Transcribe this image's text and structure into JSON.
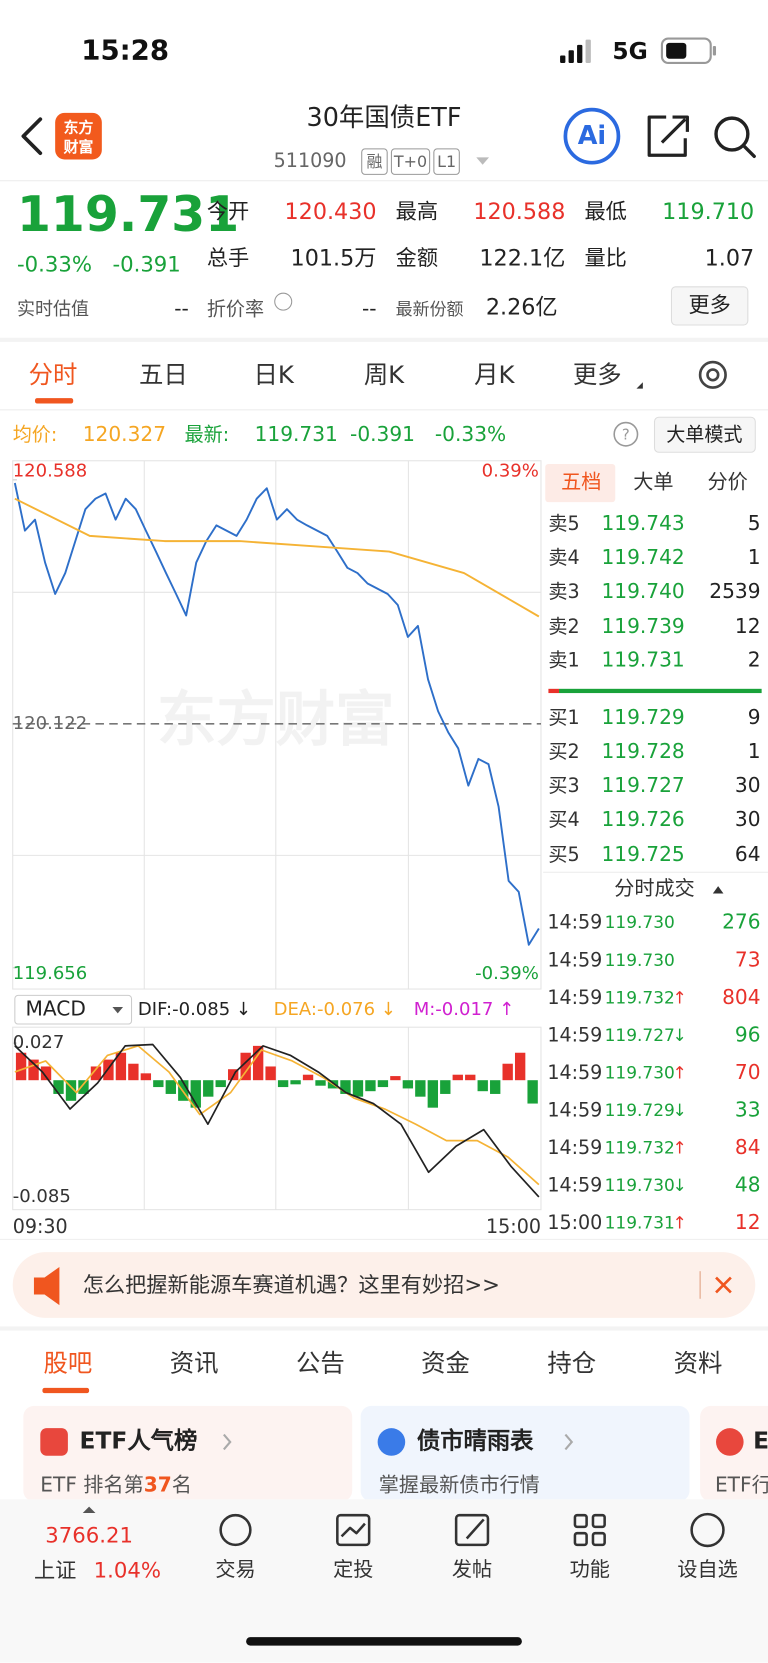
{
  "status_bar": {
    "time": "15:28",
    "network": "5G"
  },
  "header": {
    "logo": [
      "东方",
      "财富"
    ],
    "title": "30年国债ETF",
    "code": "511090",
    "tags": [
      "融",
      "T+0",
      "L1"
    ],
    "ai": "Ai"
  },
  "quote": {
    "price": "119.731",
    "change_pct": "-0.33%",
    "change": "-0.391",
    "fields": [
      {
        "label": "今开",
        "value": "120.430",
        "color": "red"
      },
      {
        "label": "最高",
        "value": "120.588",
        "color": "red"
      },
      {
        "label": "最低",
        "value": "119.710",
        "color": "green"
      },
      {
        "label": "总手",
        "value": "101.5万",
        "color": "black"
      },
      {
        "label": "金额",
        "value": "122.1亿",
        "color": "black"
      },
      {
        "label": "量比",
        "value": "1.07",
        "color": "black"
      }
    ],
    "extra": [
      {
        "label": "实时估值",
        "value": "--"
      },
      {
        "label": "折价率",
        "value": "--"
      },
      {
        "label": "最新份额",
        "value": "2.26亿"
      }
    ],
    "more": "更多"
  },
  "chart_tabs": [
    "分时",
    "五日",
    "日K",
    "周K",
    "月K",
    "更多"
  ],
  "chart_info": {
    "avg_label": "均价:",
    "avg": "120.327",
    "latest_label": "最新:",
    "latest": "119.731",
    "change": "-0.391",
    "change_pct": "-0.33%",
    "mode": "大单模式"
  },
  "intraday_chart": {
    "type": "line",
    "watermark": "东方财富",
    "ylim": [
      119.656,
      120.588
    ],
    "yticks": [
      119.656,
      120.122,
      120.588
    ],
    "right_labels": [
      "0.39%",
      "-0.39%"
    ],
    "x_labels": [
      "09:30",
      "15:00"
    ],
    "series": [
      {
        "name": "price",
        "color": "#2e6fc9",
        "values": [
          120.582,
          120.491,
          120.512,
          120.43,
          120.37,
          120.41,
          120.471,
          120.532,
          120.552,
          120.562,
          120.512,
          120.552,
          120.532,
          120.491,
          120.451,
          120.41,
          120.37,
          120.329,
          120.43,
          120.471,
          120.501,
          120.491,
          120.481,
          120.512,
          120.552,
          120.572,
          120.512,
          120.532,
          120.512,
          120.501,
          120.491,
          120.481,
          120.451,
          120.42,
          120.41,
          120.39,
          120.38,
          120.37,
          120.349,
          120.288,
          120.309,
          120.207,
          120.146,
          120.106,
          120.075,
          120.004,
          120.055,
          120.045,
          119.964,
          119.822,
          119.801,
          119.7,
          119.731
        ]
      },
      {
        "name": "avg",
        "color": "#f5b335",
        "values": [
          120.552,
          120.481,
          120.471,
          120.471,
          120.461,
          120.451,
          120.41,
          120.327
        ]
      }
    ]
  },
  "macd_chart": {
    "type": "macd",
    "title": "MACD",
    "dif_label": "DIF:-0.085 ↓",
    "dea_label": "DEA:-0.076 ↓",
    "m_label": "M:-0.017 ↑",
    "ylim": [
      -0.085,
      0.027
    ],
    "yticks": [
      -0.085,
      0.027
    ],
    "dif": {
      "color": "#222222",
      "values": [
        0.025,
        0.006,
        -0.021,
        -0.002,
        0.025,
        0.026,
        0.002,
        -0.032,
        0.006,
        0.025,
        0.018,
        0.006,
        -0.009,
        -0.017,
        -0.032,
        -0.067,
        -0.048,
        -0.036,
        -0.063,
        -0.085
      ]
    },
    "dea": {
      "color": "#f5b335",
      "values": [
        0.006,
        0.014,
        -0.009,
        0.018,
        0.025,
        0.006,
        -0.025,
        -0.009,
        0.022,
        0.014,
        0.002,
        -0.013,
        -0.021,
        -0.032,
        -0.044,
        -0.044,
        -0.056,
        -0.076
      ]
    },
    "m": {
      "up_color": "#e8312a",
      "down_color": "#19a23a",
      "values": [
        0.02,
        0.015,
        0.01,
        -0.01,
        -0.015,
        -0.01,
        0.01,
        0.015,
        0.02,
        0.012,
        0.005,
        -0.005,
        -0.01,
        -0.015,
        -0.02,
        -0.012,
        -0.005,
        0.008,
        0.02,
        0.025,
        0.01,
        -0.005,
        -0.003,
        0.004,
        -0.004,
        -0.006,
        -0.01,
        -0.012,
        -0.008,
        -0.005,
        0.003,
        -0.006,
        -0.012,
        -0.02,
        -0.01,
        0.004,
        0.004,
        -0.008,
        -0.01,
        0.012,
        0.02,
        -0.017
      ]
    }
  },
  "order_book": {
    "tabs": [
      "五档",
      "大单",
      "分价"
    ],
    "sell": [
      {
        "label": "卖5",
        "price": "119.743",
        "volume": "5"
      },
      {
        "label": "卖4",
        "price": "119.742",
        "volume": "1"
      },
      {
        "label": "卖3",
        "price": "119.740",
        "volume": "2539"
      },
      {
        "label": "卖2",
        "price": "119.739",
        "volume": "12"
      },
      {
        "label": "卖1",
        "price": "119.731",
        "volume": "2"
      }
    ],
    "buy": [
      {
        "label": "买1",
        "price": "119.729",
        "volume": "9"
      },
      {
        "label": "买2",
        "price": "119.728",
        "volume": "1"
      },
      {
        "label": "买3",
        "price": "119.727",
        "volume": "30"
      },
      {
        "label": "买4",
        "price": "119.726",
        "volume": "30"
      },
      {
        "label": "买5",
        "price": "119.725",
        "volume": "64"
      }
    ]
  },
  "trades": {
    "title": "分时成交",
    "rows": [
      {
        "time": "14:59",
        "price": "119.730",
        "arrow": "",
        "volume": "276",
        "color": "green"
      },
      {
        "time": "14:59",
        "price": "119.730",
        "arrow": "",
        "volume": "73",
        "color": "red"
      },
      {
        "time": "14:59",
        "price": "119.732",
        "arrow": "↑",
        "volume": "804",
        "color": "red"
      },
      {
        "time": "14:59",
        "price": "119.727",
        "arrow": "↓",
        "volume": "96",
        "color": "green"
      },
      {
        "time": "14:59",
        "price": "119.730",
        "arrow": "↑",
        "volume": "70",
        "color": "red"
      },
      {
        "time": "14:59",
        "price": "119.729",
        "arrow": "↓",
        "volume": "33",
        "color": "green"
      },
      {
        "time": "14:59",
        "price": "119.732",
        "arrow": "↑",
        "volume": "84",
        "color": "red"
      },
      {
        "time": "14:59",
        "price": "119.730",
        "arrow": "↓",
        "volume": "48",
        "color": "green"
      },
      {
        "time": "15:00",
        "price": "119.731",
        "arrow": "↑",
        "volume": "12",
        "color": "red"
      }
    ]
  },
  "banner": {
    "text": "怎么把握新能源车赛道机遇？这里有妙招>>"
  },
  "bottom_tabs": [
    "股吧",
    "资讯",
    "公告",
    "资金",
    "持仓",
    "资料"
  ],
  "cards": [
    {
      "title": "ETF人气榜",
      "subtitle": [
        "ETF 排名第",
        "37",
        "名"
      ]
    },
    {
      "title": "债市晴雨表",
      "subtitle": [
        "掌握最新债市行情"
      ]
    },
    {
      "title": "E",
      "subtitle": [
        "ETF行"
      ]
    }
  ],
  "nav": {
    "index_value": "3766.21",
    "index_name": "上证",
    "index_change": "1.04%",
    "items": [
      "交易",
      "定投",
      "发帖",
      "功能",
      "设自选"
    ]
  }
}
